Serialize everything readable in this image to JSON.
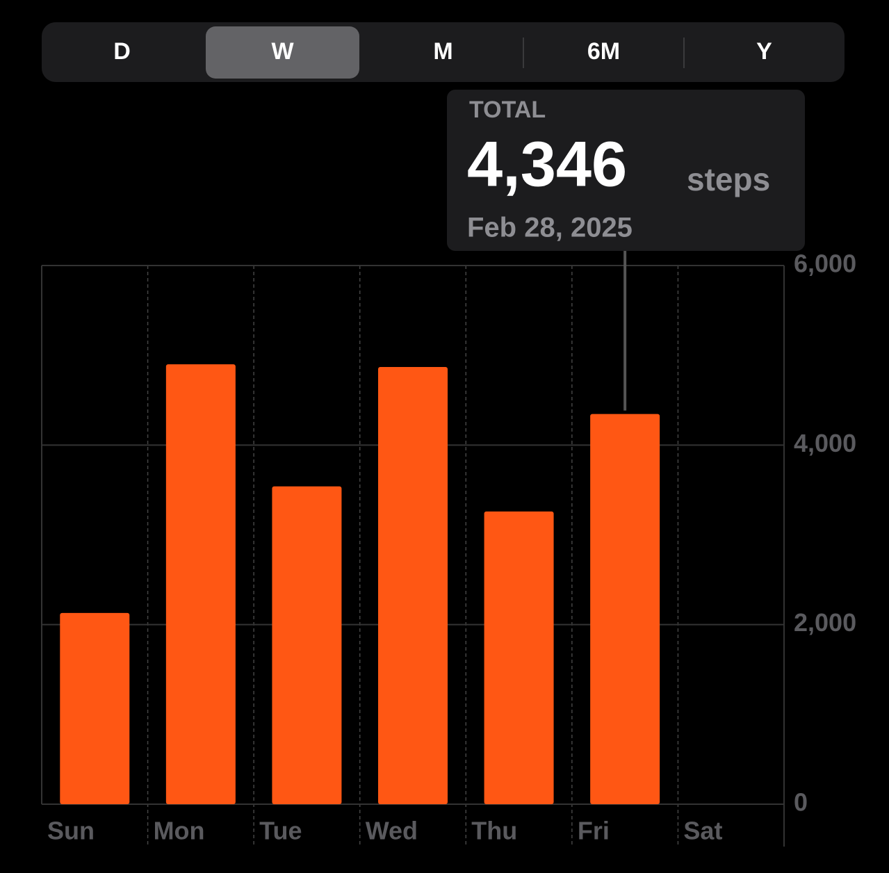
{
  "chart_data": {
    "type": "bar",
    "segments": [
      "D",
      "W",
      "M",
      "6M",
      "Y"
    ],
    "selected_segment": 1,
    "tooltip": {
      "title": "TOTAL",
      "unit": "steps",
      "date": "Feb 28, 2025"
    },
    "categories": [
      "Sun",
      "Mon",
      "Tue",
      "Wed",
      "Thu",
      "Fri",
      "Sat"
    ],
    "values": [
      2130,
      4900,
      3540,
      4870,
      3260,
      4346,
      null
    ],
    "value_labels": [
      null,
      null,
      null,
      null,
      null,
      "4,346",
      null
    ],
    "color": "#ff5714",
    "ylim": [
      0,
      6000
    ],
    "yticks": [
      0,
      {
        "value": 2000,
        "label": "2,000"
      },
      {
        "value": 4000,
        "label": "4,000"
      },
      {
        "value": 6000,
        "label": "6,000"
      }
    ],
    "grid": true
  }
}
